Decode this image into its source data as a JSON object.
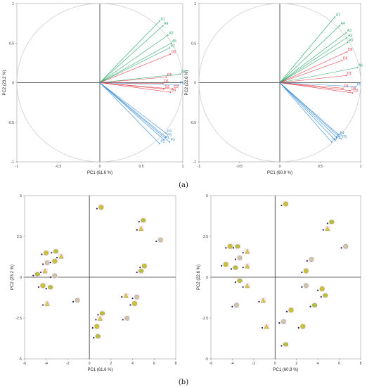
{
  "figure": {
    "panel_labels": [
      "(a)",
      "(b)"
    ]
  },
  "colors": {
    "group_A": "#2eaa6a",
    "group_D": "#e0323c",
    "group_P": "#3b8fd6",
    "circle": "#c8c8c8",
    "axis_zero": "#333333"
  },
  "chart_data": [
    {
      "type": "scatter",
      "subtype": "correlation-circle loadings",
      "xlabel": "PC1 (61.6 %)",
      "ylabel": "PC2 (23.2 %)",
      "xlim": [
        -1,
        1
      ],
      "ylim": [
        -1,
        1
      ],
      "xticks": [
        -1,
        -0.5,
        0,
        0.5,
        1
      ],
      "yticks": [
        -1,
        -0.5,
        0,
        0.5,
        1
      ],
      "xtick_labels": [
        "-1",
        "-0.5",
        "0",
        "0.5",
        "1"
      ],
      "ytick_labels": [
        "-1",
        "-0.5",
        "0",
        "0.5",
        "1"
      ],
      "unit_circle": true,
      "series": [
        {
          "group": "A",
          "points": [
            {
              "label": "A1",
              "x": 0.72,
              "y": 0.78
            },
            {
              "label": "A4",
              "x": 0.76,
              "y": 0.72
            },
            {
              "label": "A3",
              "x": 0.82,
              "y": 0.6
            },
            {
              "label": "A5",
              "x": 0.86,
              "y": 0.5
            },
            {
              "label": "A2",
              "x": 0.84,
              "y": 0.44
            },
            {
              "label": "A6",
              "x": 0.97,
              "y": 0.11
            }
          ]
        },
        {
          "group": "D",
          "points": [
            {
              "label": "D5",
              "x": 0.85,
              "y": 0.36
            },
            {
              "label": "D1",
              "x": 0.8,
              "y": 0.07
            },
            {
              "label": "D6",
              "x": 0.76,
              "y": -0.01
            },
            {
              "label": "D3",
              "x": 0.77,
              "y": -0.08
            },
            {
              "label": "D2",
              "x": 0.88,
              "y": -0.08
            },
            {
              "label": "D4",
              "x": 0.85,
              "y": -0.12
            }
          ]
        },
        {
          "group": "P",
          "points": [
            {
              "label": "P6",
              "x": 0.95,
              "y": -0.03
            },
            {
              "label": "P4",
              "x": 0.8,
              "y": -0.64
            },
            {
              "label": "P5",
              "x": 0.8,
              "y": -0.69
            },
            {
              "label": "P1",
              "x": 0.77,
              "y": -0.72
            },
            {
              "label": "P3",
              "x": 0.84,
              "y": -0.75
            },
            {
              "label": "P2",
              "x": 0.72,
              "y": -0.77
            }
          ]
        }
      ]
    },
    {
      "type": "scatter",
      "subtype": "correlation-circle loadings",
      "xlabel": "PC1 (60.9 %)",
      "ylabel": "PC2 (22.6 %)",
      "xlim": [
        -1,
        1
      ],
      "ylim": [
        -1,
        1
      ],
      "xticks": [
        -1,
        -0.5,
        0,
        0.5,
        1
      ],
      "yticks": [
        -1,
        -0.5,
        0,
        0.5,
        1
      ],
      "xtick_labels": [
        "-1",
        "-0.5",
        "0",
        "0.5",
        "1"
      ],
      "ytick_labels": [
        "-1",
        "-0.5",
        "0",
        "0.5",
        "1"
      ],
      "unit_circle": true,
      "series": [
        {
          "group": "A",
          "points": [
            {
              "label": "A1",
              "x": 0.68,
              "y": 0.83
            },
            {
              "label": "A4",
              "x": 0.74,
              "y": 0.72
            },
            {
              "label": "A3",
              "x": 0.82,
              "y": 0.63
            },
            {
              "label": "A2",
              "x": 0.83,
              "y": 0.57
            },
            {
              "label": "A5",
              "x": 0.84,
              "y": 0.51
            },
            {
              "label": "A6",
              "x": 0.96,
              "y": 0.19
            }
          ]
        },
        {
          "group": "D",
          "points": [
            {
              "label": "D5",
              "x": 0.83,
              "y": 0.39
            },
            {
              "label": "D6",
              "x": 0.77,
              "y": 0.28
            },
            {
              "label": "D1",
              "x": 0.82,
              "y": 0.09
            },
            {
              "label": "D3",
              "x": 0.78,
              "y": -0.07
            },
            {
              "label": "D4",
              "x": 0.87,
              "y": -0.1
            },
            {
              "label": "D2",
              "x": 0.9,
              "y": -0.13
            }
          ]
        },
        {
          "group": "P",
          "points": [
            {
              "label": "P6",
              "x": 0.94,
              "y": -0.05
            },
            {
              "label": "P4",
              "x": 0.73,
              "y": -0.66
            },
            {
              "label": "P3",
              "x": 0.7,
              "y": -0.69
            },
            {
              "label": "P1",
              "x": 0.68,
              "y": -0.72
            },
            {
              "label": "P5",
              "x": 0.76,
              "y": -0.71
            },
            {
              "label": "P2",
              "x": 0.64,
              "y": -0.75
            }
          ]
        }
      ]
    },
    {
      "type": "scatter",
      "subtype": "score plot",
      "xlabel": "PC1 (61.6 %)",
      "ylabel": "PC2 (23.2 %)",
      "xlim": [
        -6,
        8
      ],
      "ylim": [
        -5,
        5
      ],
      "xticks": [
        -6,
        -4,
        -2,
        0,
        2,
        4,
        6,
        8
      ],
      "yticks": [
        -5,
        -2.5,
        0,
        2.5,
        5
      ],
      "xtick_labels": [
        "-6",
        "-4",
        "-2",
        "0",
        "2",
        "4",
        "6",
        "8"
      ],
      "ytick_labels": [
        "-5",
        "-2.5",
        "0",
        "2.5",
        "5"
      ],
      "points": [
        {
          "x": -4.4,
          "y": 1.4
        },
        {
          "x": -3.5,
          "y": 1.5
        },
        {
          "x": -3.0,
          "y": 1.2
        },
        {
          "x": -4.3,
          "y": 0.8
        },
        {
          "x": -3.6,
          "y": 0.9
        },
        {
          "x": -5.2,
          "y": 0.1
        },
        {
          "x": -4.5,
          "y": 0.3
        },
        {
          "x": -3.6,
          "y": 0.0
        },
        {
          "x": -4.7,
          "y": -0.6
        },
        {
          "x": -4.0,
          "y": -0.7
        },
        {
          "x": -4.3,
          "y": -1.7
        },
        {
          "x": -1.5,
          "y": -1.5
        },
        {
          "x": 0.7,
          "y": 4.2
        },
        {
          "x": 4.6,
          "y": 3.4
        },
        {
          "x": 4.4,
          "y": 2.9
        },
        {
          "x": 6.2,
          "y": 2.2
        },
        {
          "x": 4.7,
          "y": 0.6
        },
        {
          "x": 4.4,
          "y": 0.3
        },
        {
          "x": 3.0,
          "y": -1.2
        },
        {
          "x": 4.0,
          "y": -1.3
        },
        {
          "x": 3.8,
          "y": -1.7
        },
        {
          "x": 0.8,
          "y": -2.3
        },
        {
          "x": 0.6,
          "y": -2.6
        },
        {
          "x": 3.1,
          "y": -2.6
        },
        {
          "x": 0.3,
          "y": -3.1
        },
        {
          "x": 0.4,
          "y": -3.7
        }
      ]
    },
    {
      "type": "scatter",
      "subtype": "score plot",
      "xlabel": "PC1 (60.9 %)",
      "ylabel": "PC2 (22.6 %)",
      "xlim": [
        -6,
        8
      ],
      "ylim": [
        -5,
        5
      ],
      "xticks": [
        -6,
        -4,
        -2,
        0,
        2,
        4,
        6,
        8
      ],
      "yticks": [
        -5,
        -2.5,
        0,
        2.5,
        5
      ],
      "xtick_labels": [
        "-6",
        "-4",
        "-2",
        "0",
        "2",
        "4",
        "6",
        "8"
      ],
      "ytick_labels": [
        "-5",
        "-2.5",
        "0",
        "2.5",
        "5"
      ],
      "points": [
        {
          "x": 0.6,
          "y": 4.4
        },
        {
          "x": 4.9,
          "y": 3.3
        },
        {
          "x": 4.5,
          "y": 2.9
        },
        {
          "x": 6.2,
          "y": 1.8
        },
        {
          "x": -4.6,
          "y": 1.8
        },
        {
          "x": -3.9,
          "y": 1.8
        },
        {
          "x": -3.0,
          "y": 1.5
        },
        {
          "x": -3.7,
          "y": 1.1
        },
        {
          "x": -5.0,
          "y": 0.7
        },
        {
          "x": -4.1,
          "y": 0.5
        },
        {
          "x": -3.0,
          "y": 0.6
        },
        {
          "x": 3.0,
          "y": 1.0
        },
        {
          "x": 2.5,
          "y": 0.3
        },
        {
          "x": -3.7,
          "y": -0.3
        },
        {
          "x": -3.0,
          "y": -0.6
        },
        {
          "x": 2.5,
          "y": -0.6
        },
        {
          "x": 4.0,
          "y": -0.8
        },
        {
          "x": 4.3,
          "y": -1.2
        },
        {
          "x": -1.5,
          "y": -1.5
        },
        {
          "x": -4.0,
          "y": -1.8
        },
        {
          "x": 1.1,
          "y": -2.1
        },
        {
          "x": 3.3,
          "y": -1.8
        },
        {
          "x": -1.2,
          "y": -3.1
        },
        {
          "x": 0.4,
          "y": -2.8
        },
        {
          "x": 2.2,
          "y": -3.1
        },
        {
          "x": 0.6,
          "y": -4.2
        }
      ]
    }
  ]
}
